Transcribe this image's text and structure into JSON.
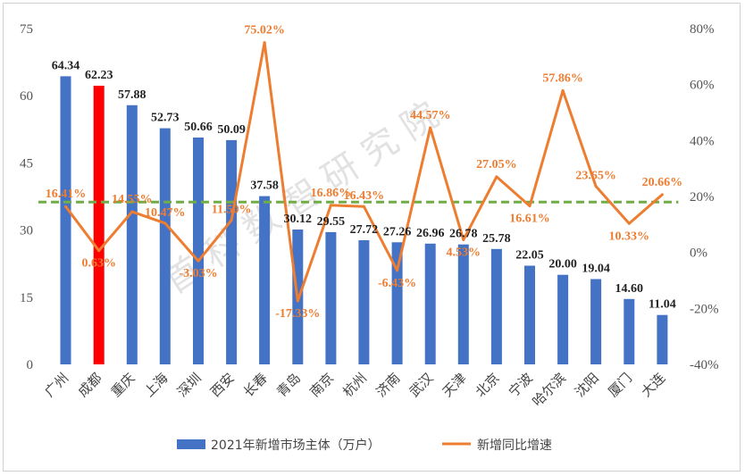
{
  "chart_data": {
    "type": "bar",
    "categories": [
      "广州",
      "成都",
      "重庆",
      "上海",
      "深圳",
      "西安",
      "长春",
      "青岛",
      "南京",
      "杭州",
      "济南",
      "武汉",
      "天津",
      "北京",
      "宁波",
      "哈尔滨",
      "沈阳",
      "厦门",
      "大连"
    ],
    "series": [
      {
        "name": "2021年新增市场主体（万户）",
        "type": "bar",
        "axis": "left",
        "values": [
          64.34,
          62.23,
          57.88,
          52.73,
          50.66,
          50.09,
          37.58,
          30.12,
          29.55,
          27.72,
          27.26,
          26.96,
          26.78,
          25.78,
          22.05,
          20.0,
          19.04,
          14.6,
          11.04
        ],
        "labels": [
          "64.34",
          "62.23",
          "57.88",
          "52.73",
          "50.66",
          "50.09",
          "37.58",
          "30.12",
          "29.55",
          "27.72",
          "27.26",
          "26.96",
          "26.78",
          "25.78",
          "22.05",
          "20.00",
          "19.04",
          "14.60",
          "11.04"
        ],
        "highlight_index": 1
      },
      {
        "name": "新增同比增速",
        "type": "line",
        "axis": "right",
        "values": [
          16.41,
          0.63,
          14.55,
          10.47,
          -3.03,
          11.5,
          75.02,
          -17.33,
          16.86,
          16.43,
          -6.43,
          44.57,
          4.53,
          27.05,
          16.61,
          57.86,
          23.65,
          10.33,
          20.66
        ],
        "labels": [
          "16.41%",
          "0.63%",
          "14.55%",
          "10.47%",
          "-3.03%",
          "11.50%",
          "75.02%",
          "-17.33%",
          "16.86%",
          "16.43%",
          "-6.43%",
          "44.57%",
          "4.53%",
          "27.05%",
          "16.61%",
          "57.86%",
          "23.65%",
          "10.33%",
          "20.66%"
        ]
      }
    ],
    "left_axis": {
      "min": 0,
      "max": 75,
      "ticks": [
        "0",
        "15",
        "30",
        "45",
        "60",
        "75"
      ]
    },
    "right_axis": {
      "min": -40,
      "max": 80,
      "ticks": [
        "-40%",
        "-20%",
        "0%",
        "20%",
        "40%",
        "60%",
        "80%"
      ]
    },
    "reference_line_right": 18,
    "legend_position": "bottom",
    "grid": false,
    "watermark": "首 科 数 智 研 究 院"
  },
  "colors": {
    "bar": "#4472C4",
    "bar_highlight": "#FF0000",
    "line": "#ED7D31",
    "reference": "#70AD47"
  }
}
